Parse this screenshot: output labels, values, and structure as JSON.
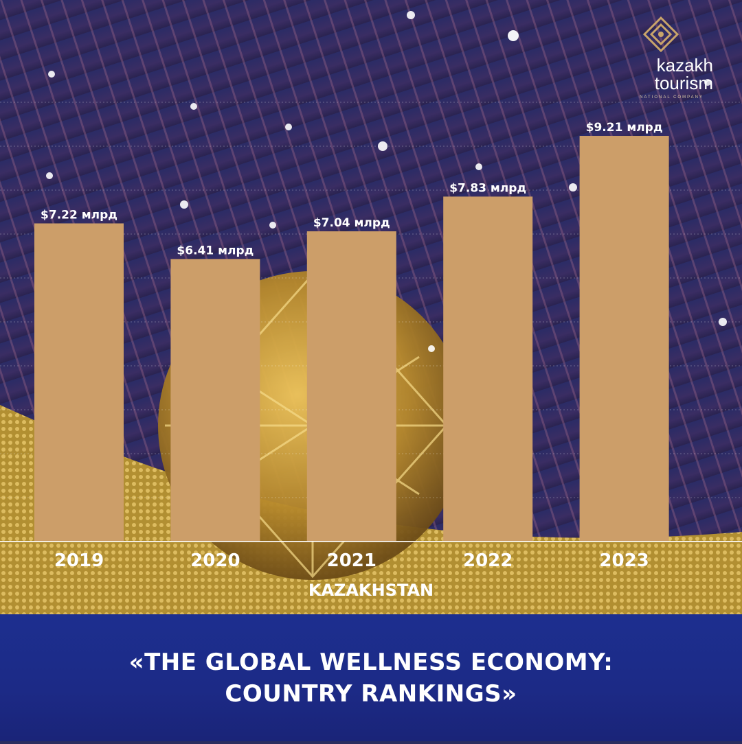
{
  "brand": {
    "name_line1": "kazakh",
    "name_line2": "tourism",
    "subtitle": "NATIONAL COMPANY",
    "accent": "#c9a46a"
  },
  "footer": {
    "line1": "«THE GLOBAL WELLNESS ECONOMY:",
    "line2": "COUNTRY RANKINGS»"
  },
  "colors": {
    "bar": "#cc9e69",
    "banner": "#1d2f8f",
    "background": "#2a2d5e"
  },
  "chart_data": {
    "type": "bar",
    "categories": [
      "2019",
      "2020",
      "2021",
      "2022",
      "2023"
    ],
    "values": [
      7.22,
      6.41,
      7.04,
      7.83,
      9.21
    ],
    "value_labels": [
      "$7.22 млрд",
      "$6.41 млрд",
      "$7.04 млрд",
      "$7.83 млрд",
      "$9.21 млрд"
    ],
    "xlabel": "KAZAKHSTAN",
    "ylabel": "",
    "title": "",
    "ylim": [
      0,
      9.21
    ],
    "grid": true,
    "legend": "none"
  }
}
